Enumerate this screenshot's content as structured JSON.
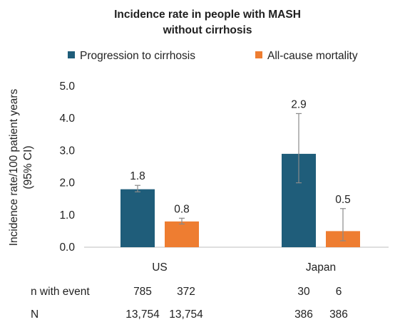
{
  "colors": {
    "progression": "#1f5d7a",
    "mortality": "#ee7d31",
    "axis": "#bfbfbf",
    "errorbar": "#8a8a8a"
  },
  "chart_data": {
    "type": "bar",
    "title_lines": [
      "Incidence rate in people with MASH",
      "without cirrhosis"
    ],
    "ylabel_lines": [
      "Incidence rate/100 patient years",
      "(95% CI)"
    ],
    "xlabel": "",
    "categories": [
      "US",
      "Japan"
    ],
    "ylim": [
      0,
      5
    ],
    "yticks": [
      "0.0",
      "1.0",
      "2.0",
      "3.0",
      "4.0",
      "5.0"
    ],
    "grid": false,
    "legend_position": "top",
    "series": [
      {
        "name": "Progression to cirrhosis",
        "values": [
          1.8,
          2.9
        ],
        "labels": [
          "1.8",
          "2.9"
        ],
        "err_low": [
          1.72,
          2.0
        ],
        "err_high": [
          1.92,
          4.15
        ]
      },
      {
        "name": "All-cause mortality",
        "values": [
          0.8,
          0.5
        ],
        "labels": [
          "0.8",
          "0.5"
        ],
        "err_low": [
          0.72,
          0.2
        ],
        "err_high": [
          0.9,
          1.2
        ]
      }
    ],
    "table": {
      "rows": [
        {
          "label": "n with event",
          "values": [
            "785",
            "372",
            "30",
            "6"
          ]
        },
        {
          "label": "N",
          "values": [
            "13,754",
            "13,754",
            "386",
            "386"
          ]
        }
      ]
    }
  }
}
